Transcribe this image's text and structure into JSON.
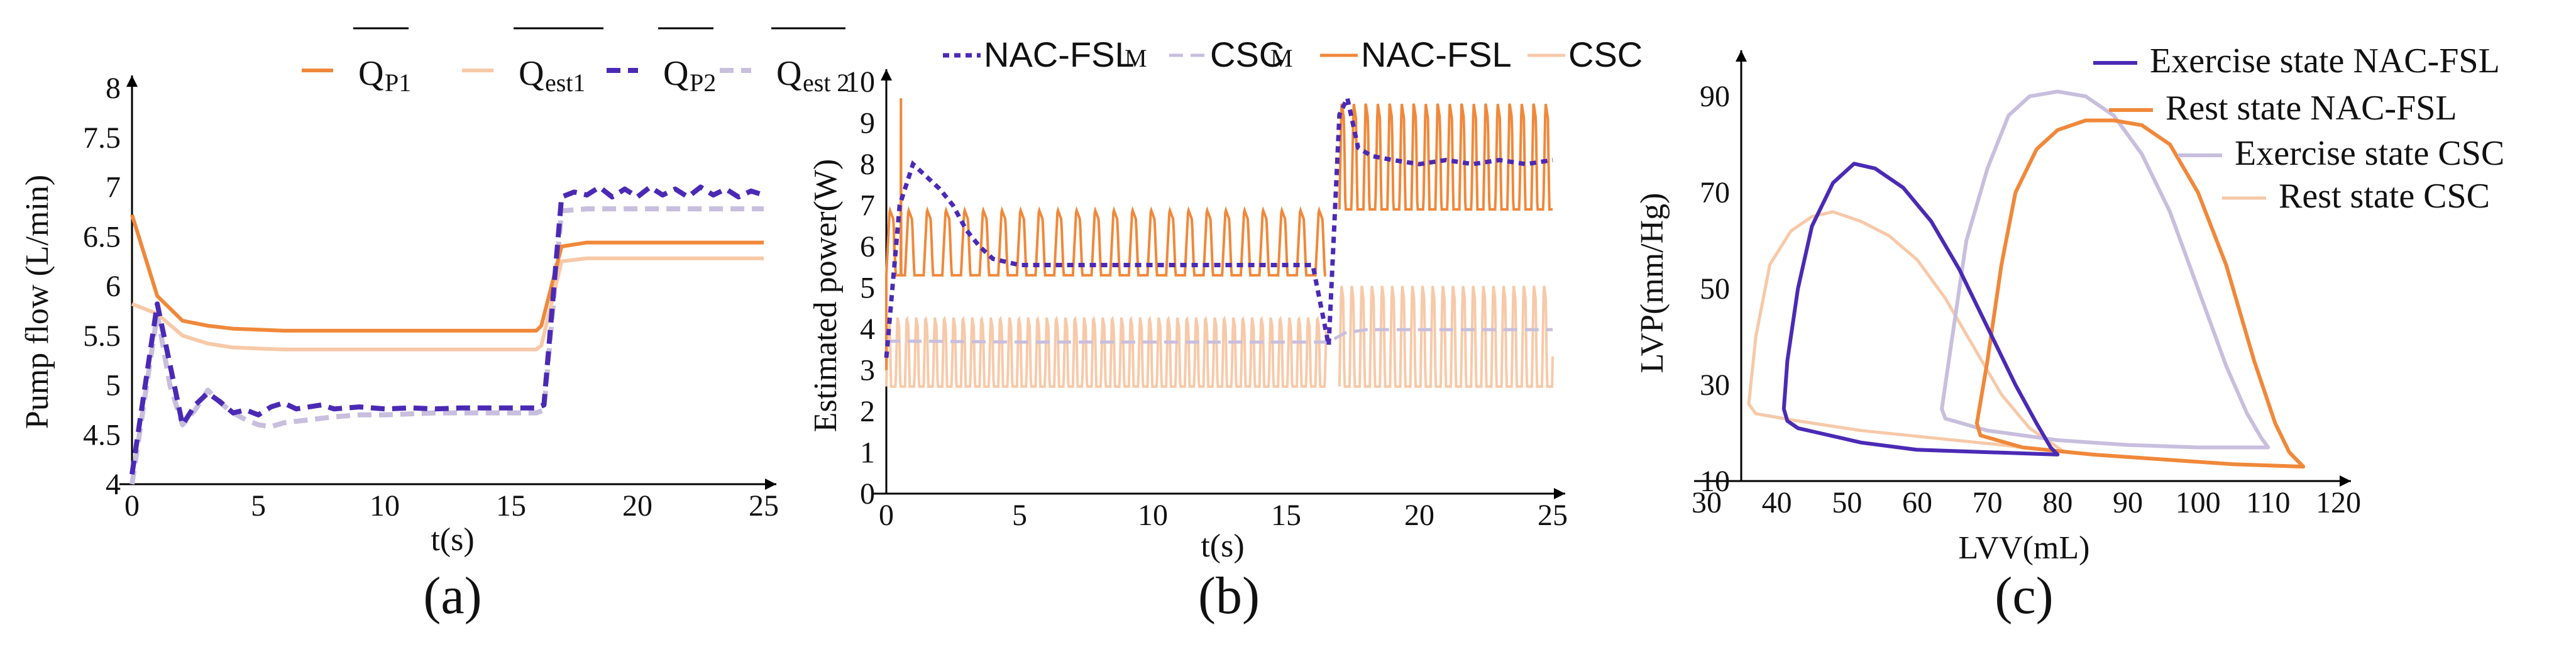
{
  "chart_data": [
    {
      "type": "line",
      "panel": "(a)",
      "xlabel": "t(s)",
      "ylabel": "Pump flow (L/min)",
      "xlim": [
        0,
        25
      ],
      "ylim": [
        4,
        8
      ],
      "xticks": [
        0,
        5,
        10,
        15,
        20,
        25
      ],
      "yticks": [
        4,
        4.5,
        5,
        5.5,
        6,
        6.5,
        7,
        7.5,
        8
      ],
      "legend": [
        {
          "main": "Q",
          "sub": "P1",
          "color": "#f0883a",
          "dash": "solid",
          "width": 6
        },
        {
          "main": "Q",
          "sub": "est1",
          "color": "#f7c9a8",
          "dash": "solid",
          "width": 6
        },
        {
          "main": "Q",
          "sub": "P2",
          "color": "#4a2ab5",
          "dash": "dash",
          "width": 8
        },
        {
          "main": "Q",
          "sub": "est 2",
          "color": "#c8bedd",
          "dash": "dash",
          "width": 8
        }
      ],
      "series": [
        {
          "name": "QP1",
          "x": [
            0,
            1,
            2,
            3,
            4,
            5,
            6,
            8,
            10,
            12,
            14,
            16,
            16.2,
            17,
            18,
            19,
            20,
            22,
            25
          ],
          "y": [
            6.72,
            5.9,
            5.65,
            5.6,
            5.57,
            5.56,
            5.55,
            5.55,
            5.55,
            5.55,
            5.55,
            5.55,
            5.6,
            6.4,
            6.44,
            6.44,
            6.44,
            6.44,
            6.44
          ]
        },
        {
          "name": "Qest1",
          "x": [
            0,
            1,
            2,
            3,
            4,
            5,
            6,
            8,
            10,
            12,
            14,
            16,
            16.2,
            17,
            18,
            20,
            25
          ],
          "y": [
            5.82,
            5.72,
            5.5,
            5.42,
            5.38,
            5.37,
            5.36,
            5.36,
            5.36,
            5.36,
            5.36,
            5.36,
            5.4,
            6.25,
            6.28,
            6.28,
            6.28
          ]
        },
        {
          "name": "QP2",
          "x": [
            0,
            1,
            2,
            2.5,
            3,
            3.5,
            4,
            4.5,
            5,
            5.5,
            6,
            6.5,
            7,
            7.5,
            8,
            9,
            10,
            11,
            12,
            13,
            14,
            15,
            16,
            16.3,
            17,
            17.5,
            18,
            18.5,
            19,
            19.5,
            20,
            20.5,
            21,
            21.5,
            22,
            22.5,
            23,
            23.5,
            24,
            24.5,
            25
          ],
          "y": [
            4.1,
            5.82,
            4.6,
            4.8,
            4.92,
            4.83,
            4.72,
            4.75,
            4.7,
            4.78,
            4.82,
            4.76,
            4.78,
            4.8,
            4.76,
            4.78,
            4.76,
            4.77,
            4.76,
            4.77,
            4.77,
            4.77,
            4.77,
            4.8,
            6.9,
            6.95,
            6.92,
            7.0,
            6.9,
            6.98,
            6.9,
            7.0,
            6.92,
            6.98,
            6.9,
            7.0,
            6.92,
            6.98,
            6.9,
            6.96,
            6.92
          ]
        },
        {
          "name": "Qest2",
          "x": [
            0,
            1,
            1.5,
            2,
            2.5,
            3,
            3.5,
            4,
            4.5,
            5,
            5.5,
            6,
            7,
            8,
            9,
            10,
            12,
            14,
            16,
            16.3,
            17,
            18,
            20,
            25
          ],
          "y": [
            4.0,
            5.72,
            5.0,
            4.6,
            4.75,
            4.95,
            4.82,
            4.72,
            4.65,
            4.6,
            4.58,
            4.62,
            4.65,
            4.68,
            4.7,
            4.7,
            4.72,
            4.72,
            4.72,
            4.75,
            6.76,
            6.78,
            6.78,
            6.78
          ]
        }
      ]
    },
    {
      "type": "line",
      "panel": "(b)",
      "xlabel": "t(s)",
      "ylabel": "Estimated power(W)",
      "xlim": [
        0,
        25
      ],
      "ylim": [
        0,
        10
      ],
      "xticks": [
        0,
        5,
        10,
        15,
        20,
        25
      ],
      "yticks": [
        0,
        1,
        2,
        3,
        4,
        5,
        6,
        7,
        8,
        9,
        10
      ],
      "legend": [
        {
          "main": "NAC-FSL",
          "sub": "M",
          "color": "#4a2ab5",
          "dash": "dot",
          "width": 7
        },
        {
          "main": "CSC",
          "sub": "M",
          "color": "#c8bedd",
          "dash": "dash",
          "width": 5
        },
        {
          "main": "NAC-FSL",
          "sub": "",
          "color": "#f0883a",
          "dash": "solid",
          "width": 5
        },
        {
          "main": "CSC",
          "sub": "",
          "color": "#f7c9a8",
          "dash": "solid",
          "width": 5
        }
      ],
      "series": [
        {
          "name": "NAC-FSLM",
          "x": [
            0,
            0.5,
            1,
            1.5,
            2,
            2.5,
            3,
            3.5,
            4,
            5,
            6,
            8,
            10,
            12,
            14,
            16,
            16.6,
            17,
            17.3,
            17.7,
            18.2,
            19,
            20,
            21,
            22,
            23,
            24,
            25
          ],
          "y": [
            3.3,
            7.0,
            8.0,
            7.7,
            7.4,
            7.0,
            6.4,
            6.0,
            5.7,
            5.55,
            5.55,
            5.55,
            5.55,
            5.55,
            5.55,
            5.55,
            3.6,
            9.2,
            9.6,
            8.4,
            8.2,
            8.1,
            8.0,
            8.1,
            8.0,
            8.1,
            8.0,
            8.1
          ]
        },
        {
          "name": "CSCM",
          "x": [
            0,
            1,
            5,
            10,
            15,
            16.6,
            17.2,
            18,
            20,
            25
          ],
          "y": [
            3.7,
            3.7,
            3.68,
            3.68,
            3.68,
            3.68,
            3.9,
            3.98,
            3.98,
            3.98
          ]
        },
        {
          "name": "NAC-FSL",
          "oscillation": {
            "segment1": {
              "t": [
                0,
                16.5
              ],
              "low": 5.3,
              "high": 6.9,
              "period": 0.7,
              "initial_peak": 9.6
            },
            "segment2": {
              "t": [
                17,
                25
              ],
              "low": 6.9,
              "high": 9.5,
              "period": 0.45
            }
          }
        },
        {
          "name": "CSC",
          "oscillation": {
            "segment1": {
              "t": [
                0,
                16.5
              ],
              "low": 2.6,
              "high": 4.3,
              "period": 0.35
            },
            "segment2": {
              "t": [
                17,
                25
              ],
              "low": 2.6,
              "high": 5.1,
              "period": 0.38
            }
          }
        }
      ]
    },
    {
      "type": "line",
      "panel": "(c)",
      "xlabel": "LVV(mL)",
      "ylabel": "LVP(mm/Hg)",
      "xlim": [
        30,
        120
      ],
      "ylim": [
        10,
        95
      ],
      "xticks": [
        30,
        40,
        50,
        60,
        70,
        80,
        90,
        100,
        110,
        120
      ],
      "yticks": [
        10,
        30,
        50,
        70,
        90
      ],
      "legend": [
        {
          "main": "Exercise state NAC-FSL",
          "color": "#4a2ab5",
          "dash": "solid",
          "width": 6
        },
        {
          "main": "Rest state NAC-FSL",
          "color": "#f0883a",
          "dash": "solid",
          "width": 6
        },
        {
          "main": "Exercise state CSC",
          "color": "#c8bedd",
          "dash": "solid",
          "width": 6
        },
        {
          "main": "Rest state CSC",
          "color": "#f7c9a8",
          "dash": "solid",
          "width": 5
        }
      ],
      "series": [
        {
          "name": "Exercise state NAC-FSL",
          "x": [
            80,
            70,
            60,
            52,
            46,
            43,
            41.5,
            41,
            41.5,
            43,
            45,
            48,
            51,
            54,
            58,
            62,
            66,
            70,
            74,
            77,
            79,
            80
          ],
          "y": [
            15.5,
            16,
            16.5,
            18,
            20,
            21,
            22.5,
            25,
            35,
            50,
            63,
            72,
            76,
            75,
            71,
            64,
            54,
            42,
            30,
            22,
            17,
            15.5
          ]
        },
        {
          "name": "Rest state NAC-FSL",
          "x": [
            115,
            105,
            95,
            85,
            75,
            69,
            68.5,
            70,
            72,
            74,
            77,
            80,
            84,
            88,
            92,
            96,
            100,
            104,
            108,
            111,
            113,
            115
          ],
          "y": [
            13,
            13.5,
            14.5,
            15.5,
            17,
            19.5,
            22,
            35,
            55,
            70,
            79,
            83,
            85,
            85,
            84,
            80,
            70,
            55,
            35,
            22,
            16,
            13
          ]
        },
        {
          "name": "Exercise state CSC",
          "x": [
            110,
            100,
            90,
            80,
            70,
            64,
            63.5,
            65,
            67,
            70,
            73,
            76,
            80,
            84,
            88,
            92,
            96,
            100,
            104,
            107,
            109,
            110
          ],
          "y": [
            17,
            17,
            17.5,
            18.5,
            20.5,
            23,
            25,
            40,
            60,
            75,
            86,
            90,
            91,
            90,
            86,
            78,
            66,
            50,
            34,
            24,
            19,
            17
          ]
        },
        {
          "name": "Rest state CSC",
          "x": [
            81,
            72,
            62,
            52,
            43,
            37,
            36,
            37,
            39,
            42,
            45,
            48,
            52,
            56,
            60,
            64,
            68,
            72,
            76,
            79,
            81
          ],
          "y": [
            16,
            17.5,
            19,
            20.5,
            22.5,
            24,
            26,
            40,
            55,
            62,
            65,
            66,
            64,
            61,
            56,
            48,
            38,
            28,
            21,
            18,
            16
          ]
        }
      ]
    }
  ],
  "captions": {
    "a": "(a)",
    "b": "(b)",
    "c": "(c)"
  },
  "axes": {
    "a": {
      "xlabel": "t(s)",
      "ylabel": "Pump flow (L/min)"
    },
    "b": {
      "xlabel": "t(s)",
      "ylabel": "Estimated power(W)"
    },
    "c": {
      "xlabel": "LVV(mL)",
      "ylabel": "LVP(mm/Hg)"
    }
  }
}
